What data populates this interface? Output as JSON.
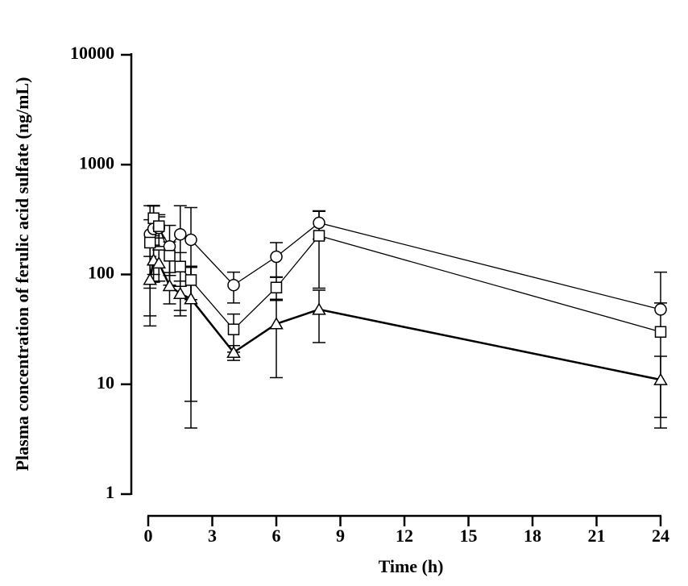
{
  "chart_data": {
    "type": "line",
    "x_label": "Time (h)",
    "y_label": "Plasma concentration of ferulic acid sulfate (ng/mL)",
    "x": [
      0.083,
      0.25,
      0.5,
      1,
      1.5,
      2,
      4,
      6,
      8,
      24
    ],
    "xlim": [
      0,
      24
    ],
    "xticks": [
      0,
      3,
      6,
      9,
      12,
      15,
      18,
      21,
      24
    ],
    "ylim": [
      1,
      10000
    ],
    "yticks": [
      1,
      10,
      100,
      1000,
      10000
    ],
    "log_y": true,
    "grid": false,
    "series": [
      {
        "marker": "circle",
        "color": "#000000",
        "values": [
          232,
          260,
          265,
          180,
          232,
          207,
          80,
          145,
          295,
          48
        ],
        "errors": [
          190,
          160,
          85,
          100,
          190,
          200,
          25,
          50,
          85,
          57
        ]
      },
      {
        "marker": "square",
        "color": "#000000",
        "values": [
          195,
          325,
          275,
          148,
          118,
          89,
          31.6,
          76,
          225,
          30
        ],
        "errors": [
          120,
          100,
          60,
          50,
          40,
          30,
          12,
          18,
          150,
          25
        ]
      },
      {
        "marker": "triangle",
        "color": "#000000",
        "values": [
          90,
          135,
          127,
          79,
          67,
          60,
          19.5,
          35.5,
          48,
          11
        ],
        "errors": [
          56,
          50,
          40,
          25,
          20,
          56,
          3,
          24,
          24,
          7
        ]
      }
    ]
  }
}
